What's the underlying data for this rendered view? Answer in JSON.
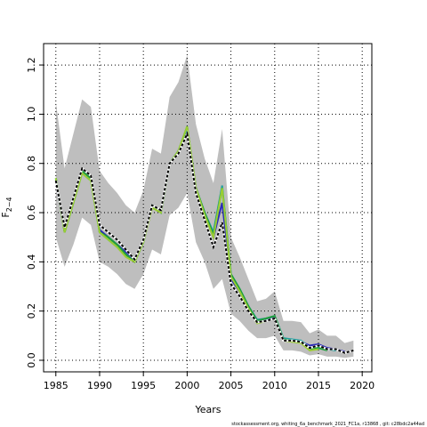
{
  "chart_data": {
    "type": "line",
    "xlabel": "Years",
    "ylabel": {
      "main": "F",
      "sub": "2−4"
    },
    "footer": "stockassessment.org, whiting_6a_benchmark_2021_FC1a, r13868 , git: c28bdc2a44ad",
    "x": [
      1985,
      1986,
      1987,
      1988,
      1989,
      1990,
      1991,
      1992,
      1993,
      1994,
      1995,
      1996,
      1997,
      1998,
      1999,
      2000,
      2001,
      2002,
      2003,
      2004,
      2005,
      2006,
      2007,
      2008,
      2009,
      2010,
      2011,
      2012,
      2013,
      2014,
      2015,
      2016,
      2017,
      2018,
      2019
    ],
    "band": {
      "color": "#bebebe",
      "upper": [
        1.05,
        0.78,
        0.92,
        1.06,
        1.03,
        0.77,
        0.72,
        0.68,
        0.63,
        0.6,
        0.69,
        0.86,
        0.84,
        1.07,
        1.13,
        1.24,
        0.96,
        0.82,
        0.72,
        0.94,
        0.5,
        0.42,
        0.33,
        0.24,
        0.25,
        0.28,
        0.16,
        0.16,
        0.155,
        0.11,
        0.125,
        0.1,
        0.1,
        0.07,
        0.08
      ],
      "lower": [
        0.5,
        0.38,
        0.47,
        0.58,
        0.55,
        0.4,
        0.38,
        0.35,
        0.31,
        0.29,
        0.35,
        0.45,
        0.43,
        0.59,
        0.62,
        0.68,
        0.48,
        0.4,
        0.29,
        0.33,
        0.19,
        0.16,
        0.12,
        0.09,
        0.09,
        0.1,
        0.04,
        0.04,
        0.035,
        0.02,
        0.025,
        0.015,
        0.015,
        0.01,
        0.015
      ]
    },
    "series": [
      {
        "color": "#2b2bb8",
        "values": [
          0.73,
          0.53,
          0.65,
          0.77,
          0.74,
          0.53,
          0.5,
          0.47,
          0.44,
          0.41,
          0.49,
          0.63,
          0.61,
          0.8,
          0.85,
          0.93,
          0.69,
          0.6,
          0.5,
          0.64,
          0.33,
          0.28,
          0.21,
          0.16,
          0.165,
          0.175,
          0.085,
          0.08,
          0.075,
          0.06,
          0.065,
          0.05,
          0.045,
          0.035,
          null
        ]
      },
      {
        "color": "#1fa0a0",
        "values": [
          0.74,
          0.52,
          0.64,
          0.76,
          0.73,
          0.52,
          0.49,
          0.46,
          0.43,
          0.4,
          0.48,
          0.63,
          0.6,
          0.8,
          0.85,
          0.94,
          0.7,
          0.6,
          0.52,
          0.71,
          0.35,
          0.29,
          0.22,
          0.165,
          0.17,
          0.18,
          0.09,
          0.085,
          0.08,
          0.05,
          0.055,
          0.045,
          0.04,
          null,
          null
        ]
      },
      {
        "color": "#1e9e3a",
        "values": [
          0.74,
          0.52,
          0.64,
          0.77,
          0.74,
          0.52,
          0.5,
          0.47,
          0.43,
          0.4,
          0.48,
          0.63,
          0.6,
          0.8,
          0.85,
          0.95,
          0.7,
          0.6,
          0.51,
          0.7,
          0.35,
          0.29,
          0.22,
          0.16,
          0.17,
          0.18,
          0.085,
          0.08,
          0.075,
          0.045,
          0.05,
          0.04,
          null,
          null,
          null
        ]
      },
      {
        "color": "#9acd32",
        "values": [
          0.74,
          0.52,
          0.64,
          0.76,
          0.73,
          0.52,
          0.49,
          0.46,
          0.42,
          0.4,
          0.48,
          0.62,
          0.6,
          0.8,
          0.85,
          0.95,
          0.7,
          0.59,
          0.5,
          0.7,
          0.34,
          0.28,
          0.21,
          0.15,
          0.16,
          0.17,
          0.08,
          0.075,
          0.07,
          0.04,
          0.045,
          null,
          null,
          null,
          null
        ]
      },
      {
        "color": "#000000",
        "dashed": true,
        "values": [
          0.73,
          0.54,
          0.66,
          0.78,
          0.75,
          0.55,
          0.52,
          0.49,
          0.45,
          0.41,
          0.49,
          0.63,
          0.61,
          0.8,
          0.84,
          0.92,
          0.68,
          0.57,
          0.46,
          0.56,
          0.31,
          0.26,
          0.2,
          0.155,
          0.16,
          0.17,
          0.08,
          0.08,
          0.075,
          0.05,
          0.06,
          0.045,
          0.045,
          0.03,
          0.04
        ]
      }
    ],
    "xlim": [
      1983.6,
      2021.1
    ],
    "ylim": [
      -0.047,
      1.287
    ],
    "xticks": [
      1985,
      1990,
      1995,
      2000,
      2005,
      2010,
      2015,
      2020
    ],
    "yticks": [
      {
        "value": 0,
        "label": "0.0"
      },
      0.2,
      0.4,
      0.6,
      0.8,
      {
        "value": 1,
        "label": "1.0"
      },
      1.2
    ],
    "grid": true
  }
}
